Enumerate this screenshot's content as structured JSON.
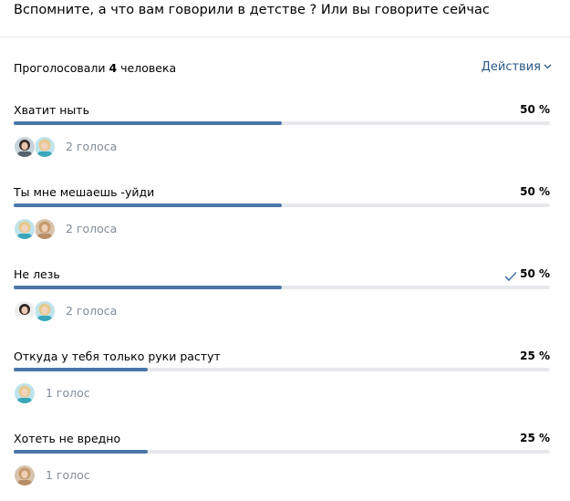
{
  "question": "Вспомните, а что вам говорили в детстве ? Или вы говорите сейчас",
  "summary": {
    "prefix": "Проголосовали",
    "count": "4",
    "suffix": "человека"
  },
  "actions_label": "Действия",
  "colors": {
    "accent": "#4a76a8",
    "link": "#2a5885",
    "track": "#e7e8ec",
    "secondary_text": "#818c99"
  },
  "options": [
    {
      "label": "Хватит ныть",
      "percent": "50 %",
      "fraction": 0.5,
      "voted": false,
      "voters": "2 голоса",
      "avatars": [
        "dark-hair-woman",
        "blonde-woman"
      ]
    },
    {
      "label": "Ты мне мешаешь -уйди",
      "percent": "50 %",
      "fraction": 0.5,
      "voted": false,
      "voters": "2 голоса",
      "avatars": [
        "blonde-woman",
        "light-brown-hair-woman"
      ]
    },
    {
      "label": "Не лезь",
      "percent": "50 %",
      "fraction": 0.5,
      "voted": true,
      "voters": "2 голоса",
      "avatars": [
        "dark-hair-woman-white-top",
        "blonde-woman"
      ]
    },
    {
      "label": "Откуда у тебя только руки растут",
      "percent": "25 %",
      "fraction": 0.25,
      "voted": false,
      "voters": "1 голос",
      "avatars": [
        "blonde-woman"
      ]
    },
    {
      "label": "Хотеть не вредно",
      "percent": "25 %",
      "fraction": 0.25,
      "voted": false,
      "voters": "1 голос",
      "avatars": [
        "light-brown-hair-woman"
      ]
    }
  ]
}
